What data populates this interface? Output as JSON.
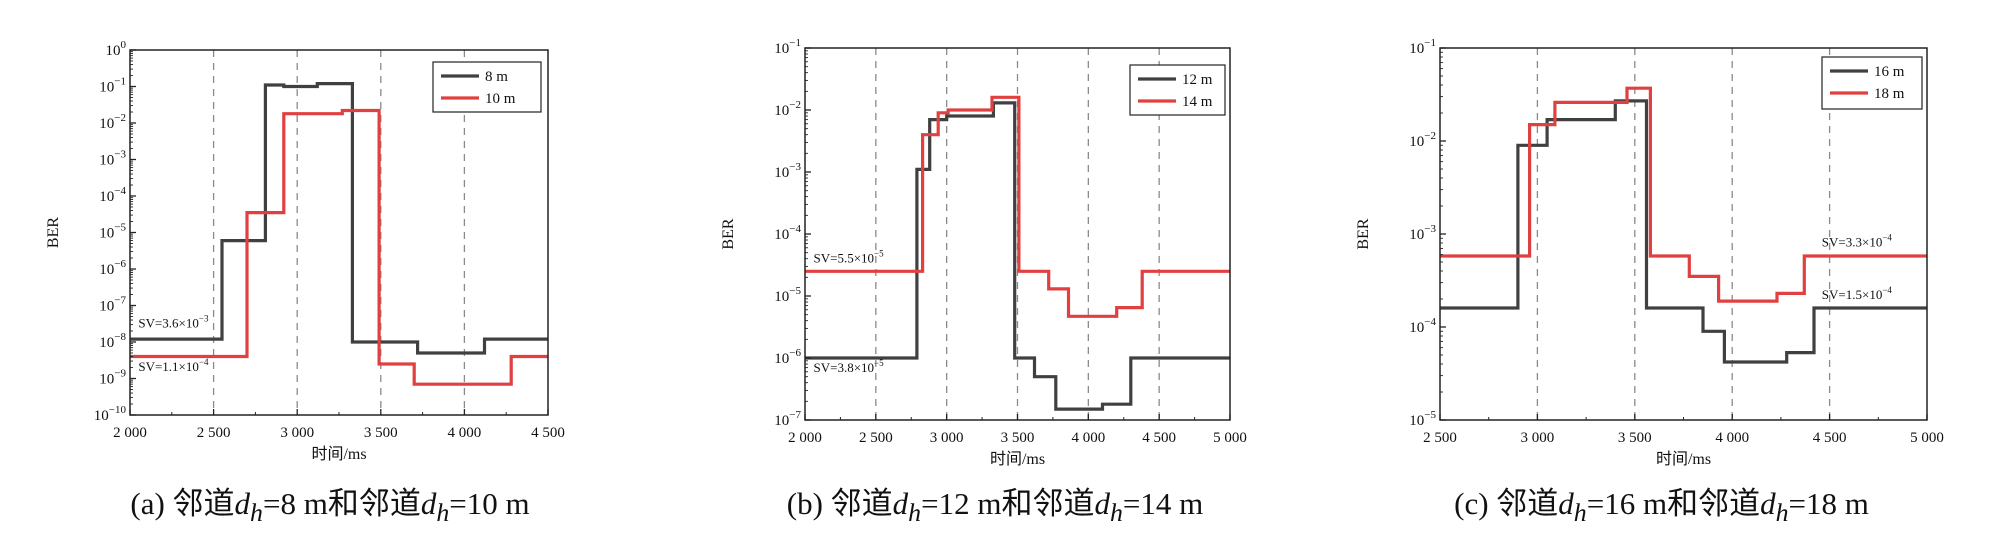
{
  "chart_data": [
    {
      "type": "line",
      "caption": {
        "prefix": "(a)",
        "mid": "邻道",
        "var": "d",
        "sub": "h",
        "v1": "=8 m",
        "join": "和邻道",
        "v2": "=10 m"
      },
      "xlabel": "时间/ms",
      "ylabel": "BER",
      "xlim": [
        2000,
        4500
      ],
      "xticks": [
        2000,
        2500,
        3000,
        3500,
        4000,
        4500
      ],
      "xtick_labels": [
        "2 000",
        "2 500",
        "3 000",
        "3 500",
        "4 000",
        "4 500"
      ],
      "yscale": "log",
      "ylim_exp": [
        -10,
        0
      ],
      "ytick_exps": [
        -10,
        -9,
        -8,
        -7,
        -6,
        -5,
        -4,
        -3,
        -2,
        -1,
        0
      ],
      "vlines": [
        2500,
        3000,
        3500,
        4000
      ],
      "legend_position": "top-right",
      "series": [
        {
          "name": "8 m",
          "color": "#404040",
          "x": [
            2000,
            2550,
            2550,
            2810,
            2810,
            2920,
            2920,
            3120,
            3120,
            3330,
            3330,
            3720,
            3720,
            4120,
            4120,
            4500
          ],
          "y": [
            1.2e-08,
            1.2e-08,
            6e-06,
            6e-06,
            0.11,
            0.11,
            0.1,
            0.1,
            0.12,
            0.12,
            1e-08,
            1e-08,
            5e-09,
            5e-09,
            1.2e-08,
            1.2e-08
          ]
        },
        {
          "name": "10 m",
          "color": "#e04040",
          "x": [
            2000,
            2700,
            2700,
            2920,
            2920,
            3270,
            3270,
            3490,
            3490,
            3700,
            3700,
            4280,
            4280,
            4500
          ],
          "y": [
            4e-09,
            4e-09,
            3.5e-05,
            3.5e-05,
            0.018,
            0.018,
            0.022,
            0.022,
            2.5e-09,
            2.5e-09,
            7e-10,
            7e-10,
            4e-09,
            4e-09
          ]
        }
      ],
      "annotations": [
        {
          "base": "SV=3.6×10",
          "exp": "−3",
          "x": 2050,
          "y": 2.5e-08
        },
        {
          "base": "SV=1.1×10",
          "exp": "−4",
          "x": 2050,
          "y": 1.6e-09
        }
      ]
    },
    {
      "type": "line",
      "caption": {
        "prefix": "(b)",
        "mid": "邻道",
        "var": "d",
        "sub": "h",
        "v1": "=12 m",
        "join": "和邻道",
        "v2": "=14 m"
      },
      "xlabel": "时间/ms",
      "ylabel": "BER",
      "xlim": [
        2000,
        5000
      ],
      "xticks": [
        2000,
        2500,
        3000,
        3500,
        4000,
        4500,
        5000
      ],
      "xtick_labels": [
        "2 000",
        "2 500",
        "3 000",
        "3 500",
        "4 000",
        "4 500",
        "5 000"
      ],
      "yscale": "log",
      "ylim_exp": [
        -7,
        -1
      ],
      "ytick_exps": [
        -7,
        -6,
        -5,
        -4,
        -3,
        -2,
        -1
      ],
      "vlines": [
        2500,
        3000,
        3500,
        4000,
        4500
      ],
      "legend_position": "top-right",
      "series": [
        {
          "name": "12 m",
          "color": "#404040",
          "x": [
            2000,
            2790,
            2790,
            2880,
            2880,
            3000,
            3000,
            3330,
            3330,
            3480,
            3480,
            3620,
            3620,
            3770,
            3770,
            4100,
            4100,
            4300,
            4300,
            5000
          ],
          "y": [
            1e-06,
            1e-06,
            0.0011,
            0.0011,
            0.007,
            0.007,
            0.008,
            0.008,
            0.013,
            0.013,
            1e-06,
            1e-06,
            5e-07,
            5e-07,
            1.5e-07,
            1.5e-07,
            1.8e-07,
            1.8e-07,
            1e-06,
            1e-06
          ]
        },
        {
          "name": "14 m",
          "color": "#e04040",
          "x": [
            2000,
            2830,
            2830,
            2940,
            2940,
            3010,
            3010,
            3320,
            3320,
            3510,
            3510,
            3720,
            3720,
            3860,
            3860,
            4200,
            4200,
            4380,
            4380,
            5000
          ],
          "y": [
            2.5e-05,
            2.5e-05,
            0.004,
            0.004,
            0.009,
            0.009,
            0.01,
            0.01,
            0.016,
            0.016,
            2.5e-05,
            2.5e-05,
            1.3e-05,
            1.3e-05,
            4.7e-06,
            4.7e-06,
            6.5e-06,
            6.5e-06,
            2.5e-05,
            2.5e-05
          ]
        }
      ],
      "annotations": [
        {
          "base": "SV=5.5×10",
          "exp": "−5",
          "x": 2060,
          "y": 3.5e-05
        },
        {
          "base": "SV=3.8×10",
          "exp": "−5",
          "x": 2060,
          "y": 6e-07
        }
      ]
    },
    {
      "type": "line",
      "caption": {
        "prefix": "(c)",
        "mid": "邻道",
        "var": "d",
        "sub": "h",
        "v1": "=16 m",
        "join": "和邻道",
        "v2": "=18 m"
      },
      "xlabel": "时间/ms",
      "ylabel": "BER",
      "xlim": [
        2500,
        5000
      ],
      "xticks": [
        2500,
        3000,
        3500,
        4000,
        4500,
        5000
      ],
      "xtick_labels": [
        "2 500",
        "3 000",
        "3 500",
        "4 000",
        "4 500",
        "5 000"
      ],
      "yscale": "log",
      "ylim_exp": [
        -5,
        -1
      ],
      "ytick_exps": [
        -5,
        -4,
        -3,
        -2,
        -1
      ],
      "vlines": [
        3000,
        3500,
        4000,
        4500
      ],
      "legend_position": "top-right",
      "series": [
        {
          "name": "16 m",
          "color": "#404040",
          "x": [
            2500,
            2900,
            2900,
            3050,
            3050,
            3400,
            3400,
            3560,
            3560,
            3850,
            3850,
            3960,
            3960,
            4280,
            4280,
            4420,
            4420,
            5000
          ],
          "y": [
            0.00016,
            0.00016,
            0.009,
            0.009,
            0.017,
            0.017,
            0.027,
            0.027,
            0.00016,
            0.00016,
            9e-05,
            9e-05,
            4.2e-05,
            4.2e-05,
            5.3e-05,
            5.3e-05,
            0.00016,
            0.00016
          ]
        },
        {
          "name": "18 m",
          "color": "#e04040",
          "x": [
            2500,
            2960,
            2960,
            3090,
            3090,
            3460,
            3460,
            3580,
            3580,
            3780,
            3780,
            3930,
            3930,
            4230,
            4230,
            4370,
            4370,
            5000
          ],
          "y": [
            0.00058,
            0.00058,
            0.015,
            0.015,
            0.026,
            0.026,
            0.037,
            0.037,
            0.00058,
            0.00058,
            0.00035,
            0.00035,
            0.00019,
            0.00019,
            0.00023,
            0.00023,
            0.00058,
            0.00058
          ]
        }
      ],
      "annotations": [
        {
          "base": "SV=3.3×10",
          "exp": "−4",
          "x": 4460,
          "y": 0.00073
        },
        {
          "base": "SV=1.5×10",
          "exp": "−4",
          "x": 4460,
          "y": 0.0002
        }
      ]
    }
  ]
}
